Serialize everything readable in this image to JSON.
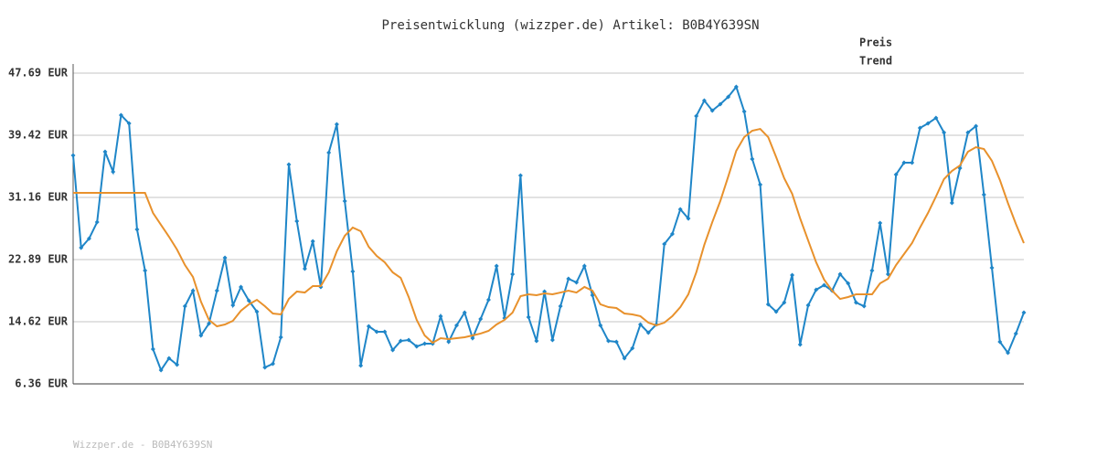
{
  "chart_data": {
    "type": "line",
    "title": "Preisentwicklung (wizzper.de) Artikel: B0B4Y639SN",
    "footer": "Wizzper.de - B0B4Y639SN",
    "ylim": [
      6.36,
      47.69
    ],
    "yticks": [
      {
        "value": 6.36,
        "label": "6.36 EUR"
      },
      {
        "value": 14.62,
        "label": "14.62 EUR"
      },
      {
        "value": 22.89,
        "label": "22.89 EUR"
      },
      {
        "value": 31.16,
        "label": "31.16 EUR"
      },
      {
        "value": 39.42,
        "label": "39.42 EUR"
      },
      {
        "value": 47.69,
        "label": "47.69 EUR"
      }
    ],
    "grid": true,
    "series": [
      {
        "name": "Preis",
        "color": "#1f86c8",
        "markers": true,
        "values": [
          36.75,
          24.47,
          25.69,
          27.87,
          37.24,
          34.56,
          42.1,
          41.0,
          26.9,
          21.43,
          10.98,
          8.19,
          9.77,
          8.91,
          16.69,
          18.76,
          12.8,
          14.38,
          18.76,
          23.14,
          16.81,
          19.25,
          17.42,
          15.96,
          8.55,
          9.03,
          12.56,
          35.53,
          28.0,
          21.68,
          25.32,
          19.25,
          37.11,
          40.88,
          30.67,
          21.31,
          8.79,
          14.02,
          13.29,
          13.29,
          10.86,
          12.07,
          12.19,
          11.34,
          11.71,
          11.71,
          15.36,
          11.95,
          14.14,
          15.84,
          12.44,
          14.99,
          17.54,
          22.04,
          15.11,
          20.95,
          34.08,
          15.23,
          12.07,
          18.64,
          12.19,
          16.69,
          20.34,
          19.85,
          22.04,
          18.15,
          14.14,
          12.07,
          11.95,
          9.77,
          11.1,
          14.26,
          13.17,
          14.26,
          24.96,
          26.3,
          29.58,
          28.36,
          41.98,
          44.04,
          42.71,
          43.56,
          44.53,
          45.87,
          42.59,
          36.27,
          32.86,
          16.94,
          15.96,
          17.18,
          20.83,
          11.59,
          16.81,
          18.88,
          19.49,
          18.76,
          20.95,
          19.73,
          17.18,
          16.69,
          21.43,
          27.75,
          20.95,
          34.2,
          35.78,
          35.78,
          40.4,
          41.0,
          41.73,
          39.79,
          30.43,
          35.05,
          39.79,
          40.64,
          31.52,
          21.8,
          11.95,
          10.49,
          13.05,
          15.84
        ]
      },
      {
        "name": "Trend",
        "color": "#e8912c",
        "markers": false,
        "values": [
          31.77,
          31.77,
          31.77,
          31.77,
          31.77,
          31.77,
          31.77,
          31.77,
          31.77,
          31.77,
          29.09,
          27.51,
          25.93,
          24.23,
          22.16,
          20.58,
          17.3,
          14.87,
          14.02,
          14.26,
          14.75,
          16.09,
          16.94,
          17.54,
          16.69,
          15.72,
          15.6,
          17.66,
          18.64,
          18.51,
          19.37,
          19.37,
          21.19,
          23.99,
          26.05,
          27.15,
          26.66,
          24.59,
          23.38,
          22.53,
          21.19,
          20.46,
          17.91,
          14.87,
          12.8,
          11.83,
          12.44,
          12.32,
          12.44,
          12.56,
          12.8,
          13.05,
          13.41,
          14.26,
          14.87,
          15.84,
          18.03,
          18.27,
          18.15,
          18.39,
          18.27,
          18.51,
          18.76,
          18.51,
          19.25,
          18.76,
          16.94,
          16.57,
          16.45,
          15.72,
          15.6,
          15.36,
          14.5,
          14.14,
          14.5,
          15.36,
          16.57,
          18.27,
          21.19,
          24.84,
          27.87,
          30.67,
          33.95,
          37.36,
          39.18,
          40.03,
          40.27,
          39.18,
          36.51,
          33.71,
          31.64,
          28.36,
          25.44,
          22.53,
          20.22,
          18.76,
          17.66,
          17.91,
          18.27,
          18.27,
          18.27,
          19.73,
          20.34,
          22.16,
          23.62,
          25.08,
          27.15,
          29.09,
          31.28,
          33.59,
          34.68,
          35.41,
          37.24,
          37.84,
          37.6,
          36.02,
          33.47,
          30.43,
          27.63,
          25.08
        ]
      }
    ]
  }
}
